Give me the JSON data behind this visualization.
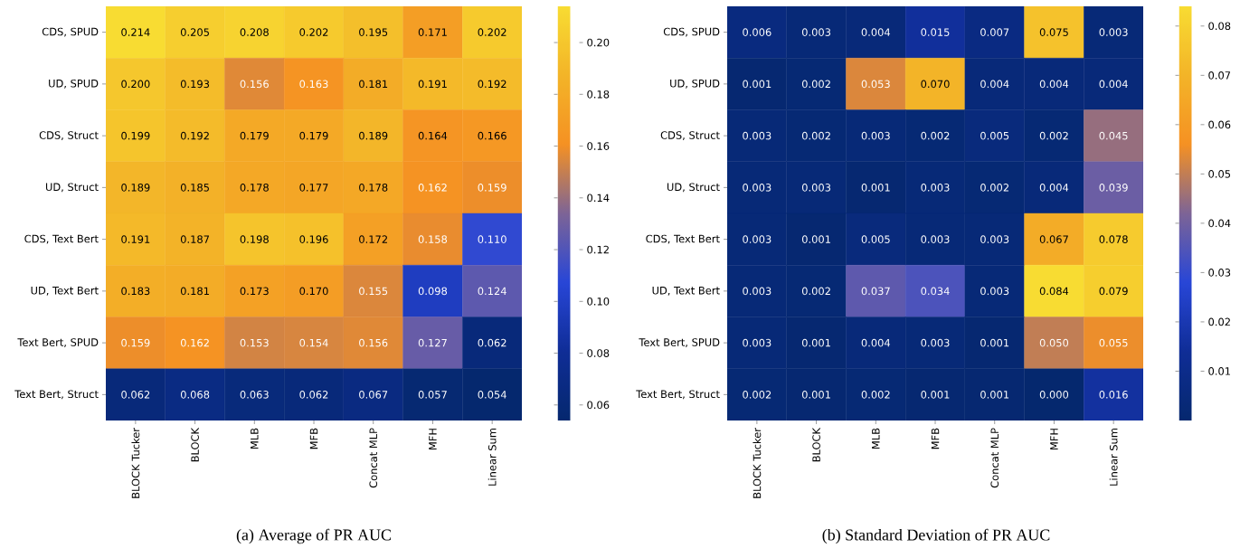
{
  "chart_data": [
    {
      "type": "heatmap",
      "title": "(a) Average of PR AUC",
      "categories": [
        "BLOCK Tucker",
        "BLOCK",
        "MLB",
        "MFB",
        "Concat MLP",
        "MFH",
        "Linear Sum"
      ],
      "y_categories": [
        "CDS, SPUD",
        "UD, SPUD",
        "CDS, Struct",
        "UD, Struct",
        "CDS, Text Bert",
        "UD, Text Bert",
        "Text Bert, SPUD",
        "Text Bert, Struct"
      ],
      "cells": [
        [
          0.214,
          0.205,
          0.208,
          0.202,
          0.195,
          0.171,
          0.202
        ],
        [
          0.2,
          0.193,
          0.156,
          0.163,
          0.181,
          0.191,
          0.192
        ],
        [
          0.199,
          0.192,
          0.179,
          0.179,
          0.189,
          0.164,
          0.166
        ],
        [
          0.189,
          0.185,
          0.178,
          0.177,
          0.178,
          0.162,
          0.159
        ],
        [
          0.191,
          0.187,
          0.198,
          0.196,
          0.172,
          0.158,
          0.11
        ],
        [
          0.183,
          0.181,
          0.173,
          0.17,
          0.155,
          0.098,
          0.124
        ],
        [
          0.159,
          0.162,
          0.153,
          0.154,
          0.156,
          0.127,
          0.062
        ],
        [
          0.062,
          0.068,
          0.063,
          0.062,
          0.067,
          0.057,
          0.054
        ]
      ],
      "cell_labels": [
        [
          "0.214",
          "0.205",
          "0.208",
          "0.202",
          "0.195",
          "0.171",
          "0.202"
        ],
        [
          "0.200",
          "0.193",
          "0.156",
          "0.163",
          "0.181",
          "0.191",
          "0.192"
        ],
        [
          "0.199",
          "0.192",
          "0.179",
          "0.179",
          "0.189",
          "0.164",
          "0.166"
        ],
        [
          "0.189",
          "0.185",
          "0.178",
          "0.177",
          "0.178",
          "0.162",
          "0.159"
        ],
        [
          "0.191",
          "0.187",
          "0.198",
          "0.196",
          "0.172",
          "0.158",
          "0.110"
        ],
        [
          "0.183",
          "0.181",
          "0.173",
          "0.170",
          "0.155",
          "0.098",
          "0.124"
        ],
        [
          "0.159",
          "0.162",
          "0.153",
          "0.154",
          "0.156",
          "0.127",
          "0.062"
        ],
        [
          "0.062",
          "0.068",
          "0.063",
          "0.062",
          "0.067",
          "0.057",
          "0.054"
        ]
      ],
      "clim": [
        0.054,
        0.214
      ],
      "cticks": [
        0.06,
        0.08,
        {
          "value": 0.1,
          "label": "0.10"
        },
        0.12,
        0.14,
        0.16,
        0.18,
        {
          "value": 0.2,
          "label": "0.20"
        }
      ]
    },
    {
      "type": "heatmap",
      "title": "(b) Standard Deviation of PR AUC",
      "categories": [
        "BLOCK Tucker",
        "BLOCK",
        "MLB",
        "MFB",
        "Concat MLP",
        "MFH",
        "Linear Sum"
      ],
      "y_categories": [
        "CDS, SPUD",
        "UD, SPUD",
        "CDS, Struct",
        "UD, Struct",
        "CDS, Text Bert",
        "UD, Text Bert",
        "Text Bert, SPUD",
        "Text Bert, Struct"
      ],
      "cells": [
        [
          0.006,
          0.003,
          0.004,
          0.015,
          0.007,
          0.075,
          0.003
        ],
        [
          0.001,
          0.002,
          0.053,
          0.07,
          0.004,
          0.004,
          0.004
        ],
        [
          0.003,
          0.002,
          0.003,
          0.002,
          0.005,
          0.002,
          0.045
        ],
        [
          0.003,
          0.003,
          0.001,
          0.003,
          0.002,
          0.004,
          0.039
        ],
        [
          0.003,
          0.001,
          0.005,
          0.003,
          0.003,
          0.067,
          0.078
        ],
        [
          0.003,
          0.002,
          0.037,
          0.034,
          0.003,
          0.084,
          0.079
        ],
        [
          0.003,
          0.001,
          0.004,
          0.003,
          0.001,
          0.05,
          0.055
        ],
        [
          0.002,
          0.001,
          0.002,
          0.001,
          0.001,
          0.0,
          0.016
        ]
      ],
      "cell_labels": [
        [
          "0.006",
          "0.003",
          "0.004",
          "0.015",
          "0.007",
          "0.075",
          "0.003"
        ],
        [
          "0.001",
          "0.002",
          "0.053",
          "0.070",
          "0.004",
          "0.004",
          "0.004"
        ],
        [
          "0.003",
          "0.002",
          "0.003",
          "0.002",
          "0.005",
          "0.002",
          "0.045"
        ],
        [
          "0.003",
          "0.003",
          "0.001",
          "0.003",
          "0.002",
          "0.004",
          "0.039"
        ],
        [
          "0.003",
          "0.001",
          "0.005",
          "0.003",
          "0.003",
          "0.067",
          "0.078"
        ],
        [
          "0.003",
          "0.002",
          "0.037",
          "0.034",
          "0.003",
          "0.084",
          "0.079"
        ],
        [
          "0.003",
          "0.001",
          "0.004",
          "0.003",
          "0.001",
          "0.050",
          "0.055"
        ],
        [
          "0.002",
          "0.001",
          "0.002",
          "0.001",
          "0.001",
          "0.000",
          "0.016"
        ]
      ],
      "clim": [
        0.0,
        0.084
      ],
      "cticks": [
        0.01,
        0.02,
        0.03,
        0.04,
        0.05,
        0.06,
        0.07,
        0.08
      ]
    }
  ]
}
